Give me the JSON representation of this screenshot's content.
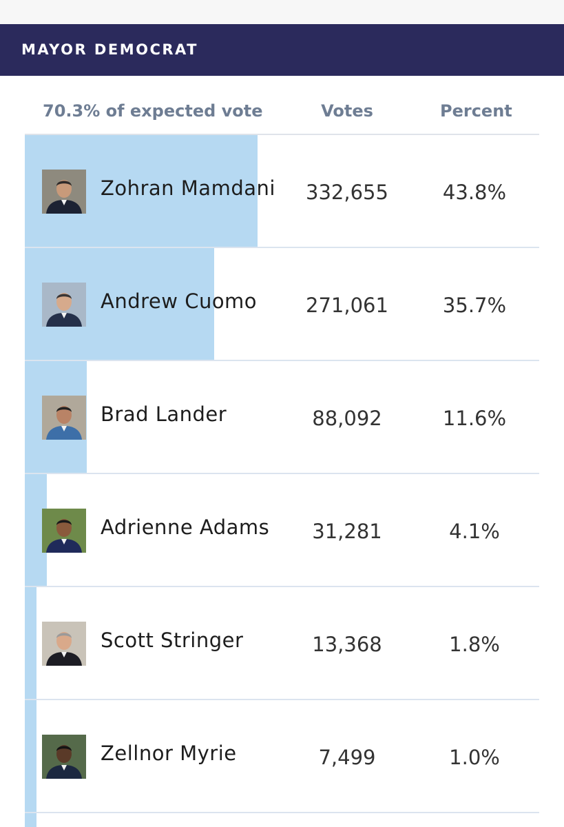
{
  "race": {
    "title": "MAYOR DEMOCRAT"
  },
  "table": {
    "expected_vote": "70.3% of expected vote",
    "votes_header": "Votes",
    "percent_header": "Percent"
  },
  "bar_color": "#b6d9f2",
  "banner_color": "#2b2a5c",
  "candidates": [
    {
      "name": "Zohran Mamdani",
      "votes": "332,655",
      "percent": "43.8%",
      "share": 0.438,
      "avatar": "candidate-photo"
    },
    {
      "name": "Andrew Cuomo",
      "votes": "271,061",
      "percent": "35.7%",
      "share": 0.357,
      "avatar": "candidate-photo"
    },
    {
      "name": "Brad Lander",
      "votes": "88,092",
      "percent": "11.6%",
      "share": 0.116,
      "avatar": "candidate-photo"
    },
    {
      "name": "Adrienne Adams",
      "votes": "31,281",
      "percent": "4.1%",
      "share": 0.041,
      "avatar": "candidate-photo"
    },
    {
      "name": "Scott Stringer",
      "votes": "13,368",
      "percent": "1.8%",
      "share": 0.018,
      "avatar": "candidate-photo"
    },
    {
      "name": "Zellnor Myrie",
      "votes": "7,499",
      "percent": "1.0%",
      "share": 0.01,
      "avatar": "candidate-photo"
    }
  ]
}
